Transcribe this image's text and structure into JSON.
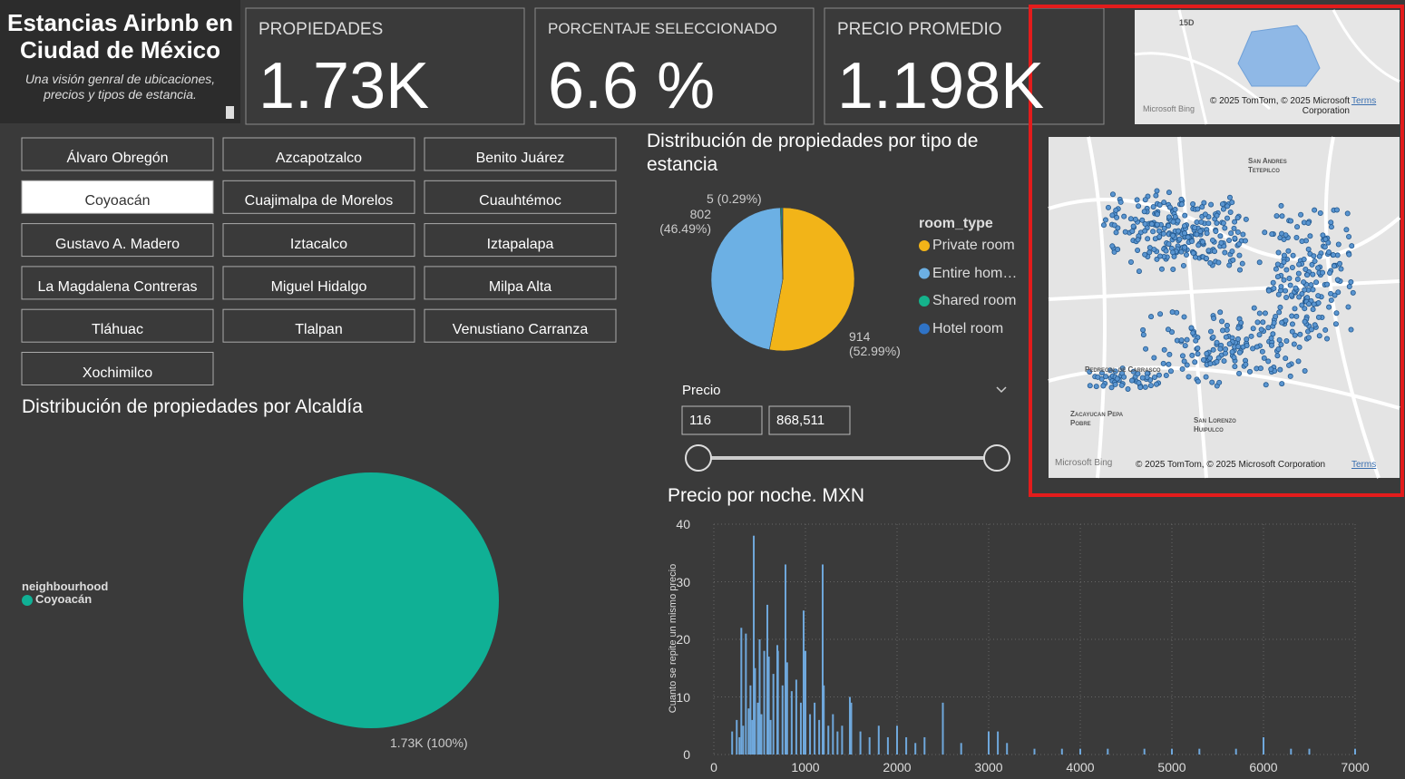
{
  "header": {
    "title": "Estancias Airbnb en Ciudad de México",
    "subtitle": "Una visión genral de ubicaciones, precios y tipos de estancia."
  },
  "cards": [
    {
      "label": "PROPIEDADES",
      "value": "1.73K"
    },
    {
      "label": "PORCENTAJE SELECCIONADO",
      "value": "6.6 %"
    },
    {
      "label": "PRECIO PROMEDIO",
      "value": "1.198K"
    }
  ],
  "slicer": {
    "items": [
      {
        "label": "Álvaro Obregón"
      },
      {
        "label": "Azcapotzalco"
      },
      {
        "label": "Benito Juárez"
      },
      {
        "label": "Coyoacán",
        "selected": true
      },
      {
        "label": "Cuajimalpa de Morelos"
      },
      {
        "label": "Cuauhtémoc"
      },
      {
        "label": "Gustavo A. Madero"
      },
      {
        "label": "Iztacalco"
      },
      {
        "label": "Iztapalapa"
      },
      {
        "label": "La Magdalena Contreras"
      },
      {
        "label": "Miguel Hidalgo"
      },
      {
        "label": "Milpa Alta"
      },
      {
        "label": "Tláhuac"
      },
      {
        "label": "Tlalpan"
      },
      {
        "label": "Venustiano Carranza"
      },
      {
        "label": "Xochimilco"
      }
    ]
  },
  "price_filter": {
    "label": "Precio",
    "min": "116",
    "max": "868,511"
  },
  "maps": {
    "top": {
      "place": "15D",
      "attribution": "© 2025 TomTom, © 2025 Microsoft Corporation",
      "terms": "Terms",
      "brand": "Microsoft Bing"
    },
    "main": {
      "places": [
        "San Andres Tetepilco",
        "Pedregal de Carrasco",
        "Zacayucan Pepa Pobre",
        "San Lorenzo Huipulco"
      ],
      "attribution": "© 2025 TomTom, © 2025 Microsoft Corporation",
      "terms": "Terms",
      "brand": "Microsoft Bing"
    }
  },
  "chart_data": [
    {
      "type": "pie",
      "title": "Distribución de propiedades por tipo de estancia",
      "legend_title": "room_type",
      "categories": [
        "Private room",
        "Entire hom…",
        "Shared room",
        "Hotel room"
      ],
      "values": [
        914,
        802,
        5,
        4
      ],
      "value_labels": [
        "914 (52.99%)",
        "802 (46.49%)",
        "5 (0.29%)",
        null
      ],
      "colors": [
        "#f2b418",
        "#6cb0e4",
        "#15b38c",
        "#2f73c6"
      ]
    },
    {
      "type": "pie",
      "title": "Distribución de propiedades por Alcaldía",
      "legend_title": "neighbourhood",
      "categories": [
        "Coyoacán"
      ],
      "values": [
        1730
      ],
      "value_labels": [
        "1.73K (100%)"
      ],
      "colors": [
        "#10b095"
      ]
    },
    {
      "type": "bar",
      "title": "Precio por noche. MXN",
      "y_label": "Cuanto se repite un mismo precio",
      "color": "#6fa8dc",
      "grid": true,
      "x": [
        200,
        250,
        280,
        300,
        320,
        350,
        380,
        400,
        420,
        436,
        450,
        480,
        500,
        520,
        550,
        584,
        600,
        620,
        650,
        693,
        700,
        750,
        782,
        800,
        850,
        900,
        950,
        980,
        1000,
        1050,
        1100,
        1150,
        1188,
        1200,
        1250,
        1300,
        1350,
        1400,
        1485,
        1500,
        1600,
        1700,
        1800,
        1900,
        2000,
        2100,
        2200,
        2300,
        2500,
        2700,
        3000,
        3100,
        3200,
        3500,
        3800,
        4000,
        4300,
        4700,
        5000,
        5300,
        5700,
        6000,
        6300,
        6500,
        7000
      ],
      "values": [
        4,
        6,
        3,
        22,
        5,
        21,
        8,
        12,
        6,
        38,
        15,
        9,
        20,
        7,
        18,
        26,
        17,
        6,
        14,
        19,
        18,
        12,
        33,
        16,
        11,
        13,
        9,
        25,
        18,
        7,
        9,
        6,
        33,
        12,
        5,
        7,
        4,
        5,
        10,
        9,
        4,
        3,
        5,
        3,
        5,
        3,
        2,
        3,
        9,
        2,
        4,
        4,
        2,
        1,
        1,
        1,
        1,
        1,
        1,
        1,
        1,
        3,
        1,
        1,
        1
      ],
      "xlim": [
        0,
        7000
      ],
      "xticks": [
        0,
        1000,
        2000,
        3000,
        4000,
        5000,
        6000,
        7000
      ],
      "ylim": [
        0,
        40
      ],
      "yticks": [
        0,
        10,
        20,
        30,
        40
      ]
    }
  ]
}
